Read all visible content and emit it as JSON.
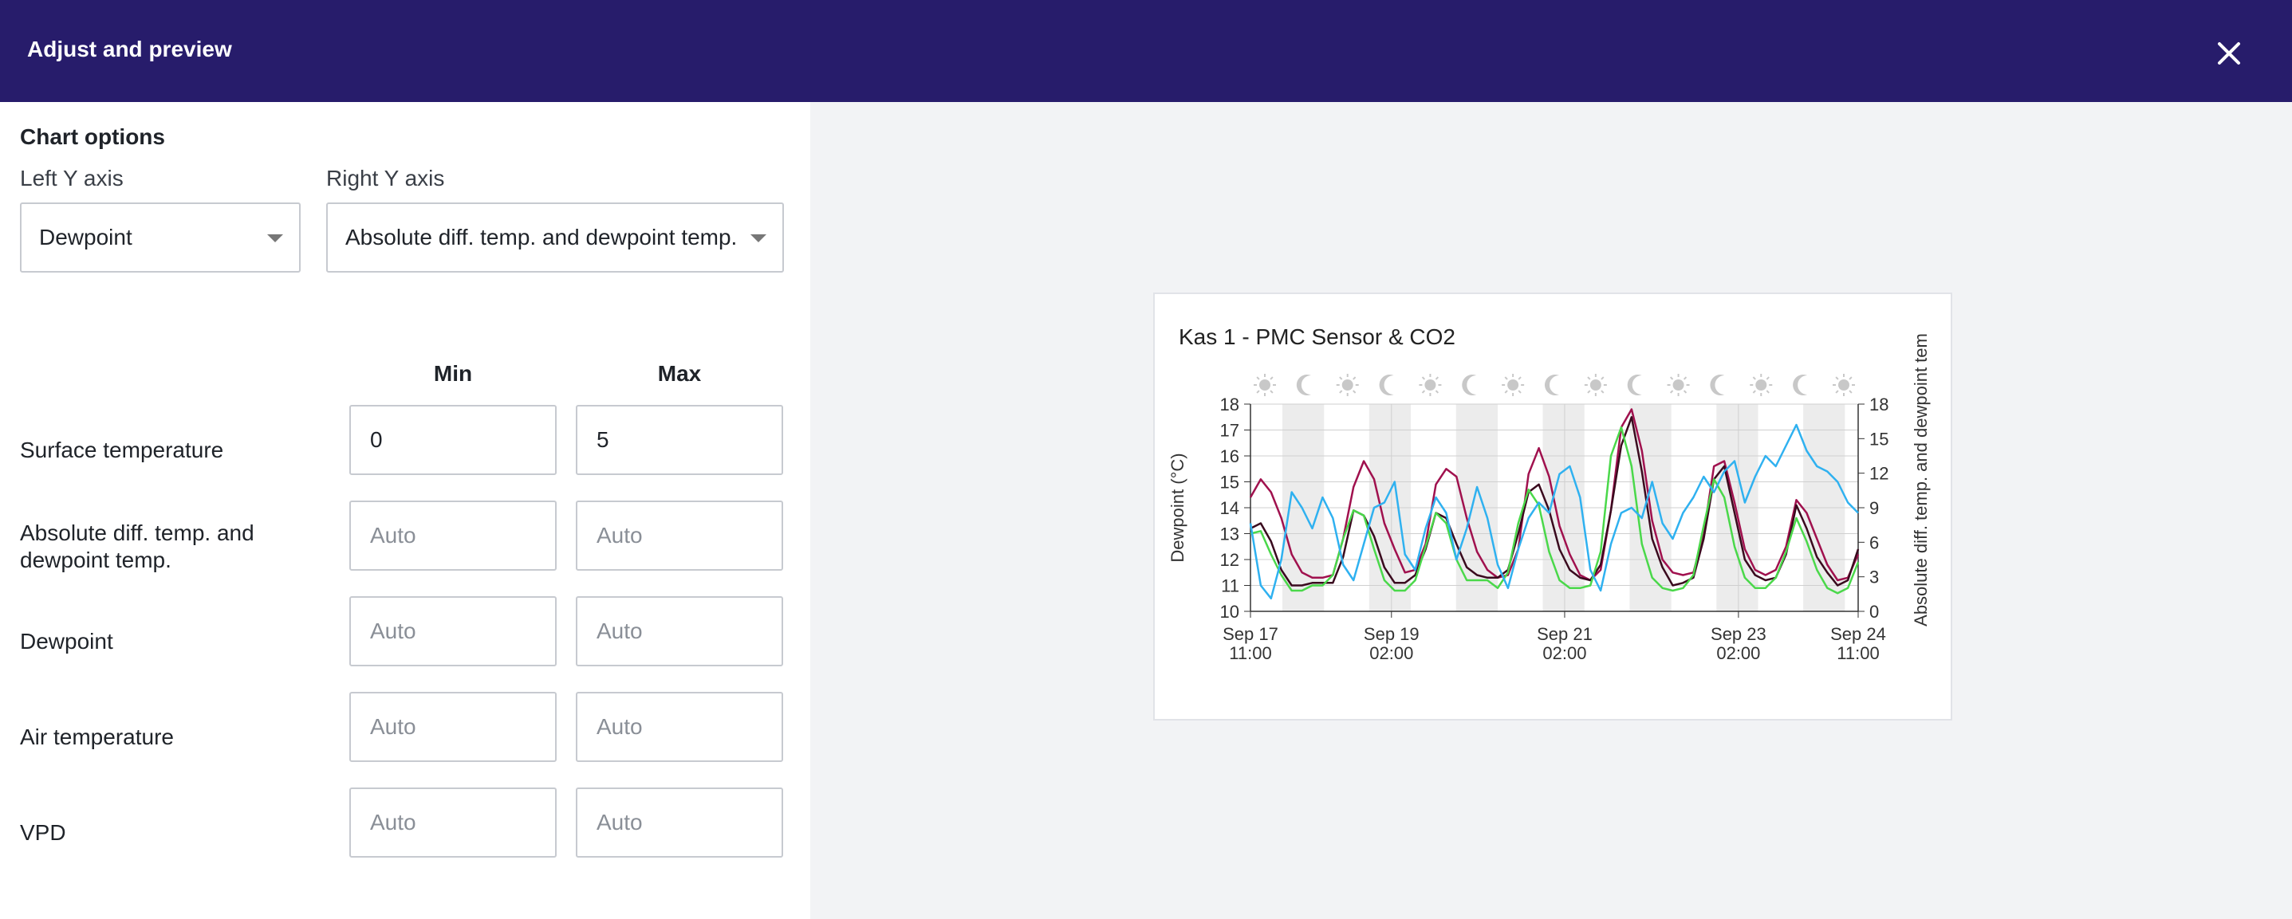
{
  "header": {
    "title": "Adjust and preview",
    "close_icon": "close-icon"
  },
  "options": {
    "section_title": "Chart options",
    "left_axis_label": "Left Y axis",
    "left_axis_value": "Dewpoint",
    "right_axis_label": "Right Y axis",
    "right_axis_value": "Absolute diff. temp. and dewpoint temp."
  },
  "limits": {
    "min_header": "Min",
    "max_header": "Max",
    "rows": [
      {
        "label": "Surface temperature",
        "min": "0",
        "max": "5",
        "min_placeholder": "",
        "max_placeholder": ""
      },
      {
        "label": "Absolute diff. temp. and dewpoint temp.",
        "min": "",
        "max": "",
        "min_placeholder": "Auto",
        "max_placeholder": "Auto"
      },
      {
        "label": "Dewpoint",
        "min": "",
        "max": "",
        "min_placeholder": "Auto",
        "max_placeholder": "Auto"
      },
      {
        "label": "Air temperature",
        "min": "",
        "max": "",
        "min_placeholder": "Auto",
        "max_placeholder": "Auto"
      },
      {
        "label": "VPD",
        "min": "",
        "max": "",
        "min_placeholder": "Auto",
        "max_placeholder": "Auto"
      }
    ]
  },
  "colors": {
    "header_bg": "#271c6b",
    "preview_bg": "#f2f3f5"
  },
  "chart_data": {
    "type": "line",
    "title": "Kas 1 - PMC Sensor & CO2",
    "ylabel": "Dewpoint (°C)",
    "y2label": "Absolute diff. temp. and dewpoint tem",
    "ylim": [
      10,
      18
    ],
    "y2lim": [
      0,
      18
    ],
    "yticks": [
      "10",
      "11",
      "12",
      "13",
      "14",
      "15",
      "16",
      "17",
      "18"
    ],
    "y2ticks": [
      "0",
      "3",
      "6",
      "9",
      "12",
      "15",
      "18"
    ],
    "xticks": [
      {
        "line1": "Sep 17",
        "line2": "11:00"
      },
      {
        "line1": "Sep 19",
        "line2": "02:00"
      },
      {
        "line1": "Sep 21",
        "line2": "02:00"
      },
      {
        "line1": "Sep 23",
        "line2": "02:00"
      },
      {
        "line1": "Sep 24",
        "line2": "11:00"
      }
    ],
    "day_night_icons": [
      "sun",
      "moon",
      "sun",
      "moon",
      "sun",
      "moon",
      "sun",
      "moon",
      "sun",
      "moon",
      "sun",
      "moon",
      "sun",
      "moon",
      "sun"
    ],
    "grid": true,
    "series": [
      {
        "color": "#a0114e",
        "values": [
          14.4,
          15.1,
          14.6,
          13.6,
          12.2,
          11.5,
          11.3,
          11.3,
          11.4,
          12.8,
          14.8,
          15.8,
          15.1,
          13.4,
          12.4,
          11.5,
          11.6,
          12.6,
          14.9,
          15.5,
          15.2,
          13.6,
          12.3,
          11.6,
          11.3,
          11.4,
          12.4,
          15.3,
          16.3,
          15.2,
          13.3,
          12.2,
          11.4,
          11.2,
          11.6,
          13.9,
          17.1,
          17.8,
          16.2,
          13.5,
          12.0,
          11.5,
          11.4,
          11.5,
          13.0,
          15.6,
          15.8,
          14.2,
          12.4,
          11.6,
          11.4,
          11.6,
          12.5,
          14.3,
          13.8,
          12.8,
          11.8,
          11.2,
          11.3,
          12.2
        ]
      },
      {
        "color": "#3a0a1e",
        "values": [
          13.2,
          13.4,
          12.7,
          11.6,
          11.0,
          11.0,
          11.1,
          11.1,
          11.1,
          12.1,
          13.9,
          13.7,
          12.9,
          11.7,
          11.1,
          11.1,
          11.4,
          12.4,
          13.8,
          13.6,
          12.6,
          11.7,
          11.4,
          11.3,
          11.3,
          11.6,
          13.0,
          14.6,
          14.9,
          13.9,
          12.4,
          11.6,
          11.3,
          11.2,
          11.8,
          13.9,
          16.4,
          17.5,
          15.4,
          12.8,
          11.7,
          11.0,
          11.1,
          11.3,
          12.8,
          15.1,
          15.6,
          13.8,
          12.0,
          11.4,
          11.2,
          11.3,
          12.2,
          14.1,
          13.2,
          12.1,
          11.5,
          11.0,
          11.2,
          12.4
        ]
      },
      {
        "color": "#4ad84a",
        "values": [
          13.0,
          13.1,
          12.2,
          11.4,
          10.8,
          10.8,
          11.0,
          11.0,
          11.4,
          12.8,
          13.9,
          13.7,
          12.4,
          11.2,
          10.8,
          10.8,
          11.2,
          12.5,
          13.8,
          13.4,
          12.0,
          11.2,
          11.2,
          11.2,
          10.9,
          11.5,
          13.4,
          14.7,
          14.1,
          12.3,
          11.2,
          10.9,
          10.9,
          11.0,
          12.3,
          16.0,
          17.1,
          15.6,
          12.6,
          11.3,
          10.9,
          10.8,
          10.9,
          11.4,
          13.3,
          15.1,
          14.4,
          12.5,
          11.3,
          10.9,
          10.9,
          11.3,
          12.3,
          13.6,
          12.7,
          11.6,
          10.9,
          10.7,
          10.9,
          11.9
        ]
      },
      {
        "color": "#2fb1f0",
        "values": [
          13.4,
          11.0,
          10.5,
          12.0,
          14.6,
          14.0,
          13.2,
          14.4,
          13.6,
          11.8,
          11.2,
          12.6,
          14.0,
          14.2,
          15.0,
          12.2,
          11.6,
          13.2,
          14.4,
          13.8,
          12.0,
          13.2,
          14.8,
          13.6,
          11.8,
          10.9,
          12.4,
          13.6,
          14.2,
          13.8,
          15.3,
          15.6,
          14.4,
          11.6,
          10.8,
          12.6,
          13.8,
          14.0,
          13.6,
          15.0,
          13.4,
          12.8,
          13.8,
          14.4,
          15.2,
          14.6,
          15.4,
          15.8,
          14.2,
          15.2,
          16.0,
          15.6,
          16.4,
          17.2,
          16.2,
          15.6,
          15.4,
          15.0,
          14.2,
          13.8
        ]
      }
    ]
  }
}
